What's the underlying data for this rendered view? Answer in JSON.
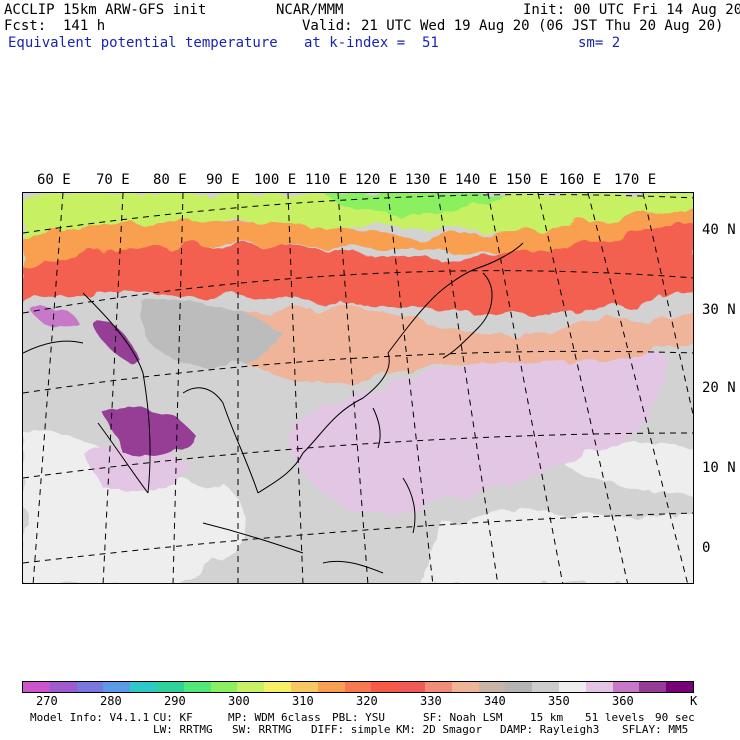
{
  "header": {
    "model": "ACCLIP 15km ARW-GFS init",
    "org": "NCAR/MMM",
    "init": "Init: 00 UTC Fri 14 Aug 20",
    "fcst": "Fcst:  141 h",
    "valid": "Valid: 21 UTC Wed 19 Aug 20 (06 JST Thu 20 Aug 20)",
    "field": "Equivalent potential temperature",
    "level": "at k-index =  51",
    "smooth": "sm= 2"
  },
  "axes": {
    "lon_labels": [
      "60 E",
      "70 E",
      "80 E",
      "90 E",
      "100 E",
      "110 E",
      "120 E",
      "130 E",
      "140 E",
      "150 E",
      "160 E",
      "170 E"
    ],
    "lat_labels": [
      "40 N",
      "30 N",
      "20 N",
      "10 N",
      "0"
    ]
  },
  "colorbar": {
    "colors": [
      "#cc55cc",
      "#a05ad0",
      "#7878e0",
      "#5a9ae6",
      "#2ec8c8",
      "#30d29c",
      "#50e878",
      "#8af060",
      "#c8f064",
      "#f8f064",
      "#f8c860",
      "#f8a050",
      "#f87850",
      "#f85a48",
      "#f25a5a",
      "#f08c78",
      "#f0b496",
      "#c8b4a6",
      "#b4b4b4",
      "#cccccc",
      "#eeeeee",
      "#e4c4e4",
      "#c878c8",
      "#963c96",
      "#780078"
    ],
    "labels": [
      "270",
      "280",
      "290",
      "300",
      "310",
      "320",
      "330",
      "340",
      "350",
      "360"
    ],
    "unit": "K"
  },
  "footer": {
    "line1": [
      "Model Info: V4.1.1",
      "CU: KF",
      "MP: WDM 6class",
      "PBL: YSU",
      "SF: Noah LSM",
      "15 km",
      "51 levels",
      "90 sec"
    ],
    "line2": [
      "LW: RRTMG",
      "SW: RRTMG",
      "DIFF: simple",
      "KM: 2D Smagor",
      "DAMP: Rayleigh3",
      "SFLAY: MM5"
    ]
  }
}
